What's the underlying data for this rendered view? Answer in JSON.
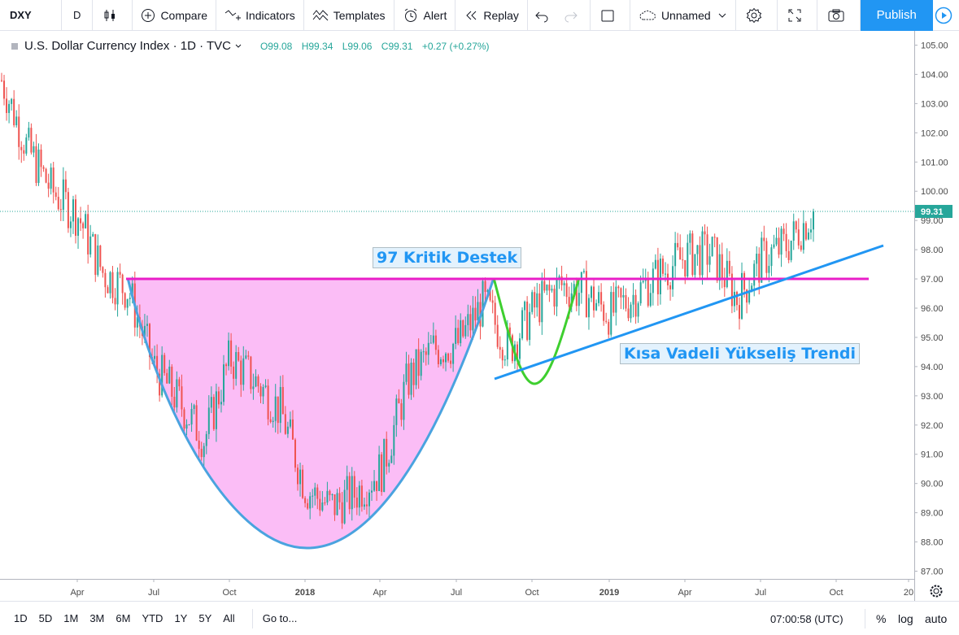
{
  "toolbar": {
    "symbol": "DXY",
    "interval": "D",
    "compare": "Compare",
    "indicators": "Indicators",
    "templates": "Templates",
    "alert": "Alert",
    "replay": "Replay",
    "layout_name": "Unnamed",
    "publish": "Publish"
  },
  "legend": {
    "title": "U.S. Dollar Currency Index · 1D · TVC",
    "open": "O99.08",
    "high": "H99.34",
    "low": "L99.06",
    "close": "C99.31",
    "change": "+0.27 (+0.27%)"
  },
  "annotations": {
    "support_label": "97 Kritik Destek",
    "trend_label": "Kısa Vadeli Yükseliş Trendi"
  },
  "bottombar": {
    "ranges": [
      "1D",
      "5D",
      "1M",
      "3M",
      "6M",
      "YTD",
      "1Y",
      "5Y",
      "All"
    ],
    "goto": "Go to...",
    "clock": "07:00:58 (UTC)",
    "percent": "%",
    "log": "log",
    "auto": "auto"
  },
  "colors": {
    "up": "#26a69a",
    "down": "#ef5350",
    "support_line": "#e91ec8",
    "cup_fill": "#fbb9f5",
    "cup_stroke": "#4aa3df",
    "handle_stroke": "#3ecf2f",
    "trend_line": "#2196f3",
    "accent": "#2196f3"
  },
  "chart_data": {
    "type": "candlestick",
    "symbol": "DXY",
    "y_axis": {
      "min": 87.0,
      "max": 105.0,
      "ticks": [
        "105.00",
        "104.00",
        "103.00",
        "102.00",
        "101.00",
        "100.00",
        "99.00",
        "98.00",
        "97.00",
        "96.00",
        "95.00",
        "94.00",
        "93.00",
        "92.00",
        "91.00",
        "90.00",
        "89.00",
        "88.00",
        "87.00"
      ]
    },
    "x_axis": {
      "ticks": [
        "Apr",
        "Jul",
        "Oct",
        "2018",
        "Apr",
        "Jul",
        "Oct",
        "2019",
        "Apr",
        "Jul",
        "Oct",
        "20"
      ]
    },
    "last_price": 99.31,
    "last_price_label": "99.31",
    "price_path": [
      [
        "2017-01",
        103.8
      ],
      [
        "2017-02",
        101.5
      ],
      [
        "2017-03",
        100.0
      ],
      [
        "2017-04",
        99.2
      ],
      [
        "2017-05",
        97.2
      ],
      [
        "2017-06",
        96.6
      ],
      [
        "2017-07",
        94.0
      ],
      [
        "2017-08",
        92.8
      ],
      [
        "2017-09",
        91.5
      ],
      [
        "2017-10",
        94.3
      ],
      [
        "2017-11",
        93.5
      ],
      [
        "2017-12",
        92.5
      ],
      [
        "2018-01",
        89.8
      ],
      [
        "2018-02",
        89.2
      ],
      [
        "2018-03",
        89.7
      ],
      [
        "2018-04",
        90.5
      ],
      [
        "2018-05",
        93.5
      ],
      [
        "2018-06",
        94.6
      ],
      [
        "2018-07",
        94.8
      ],
      [
        "2018-08",
        96.2
      ],
      [
        "2018-09",
        94.6
      ],
      [
        "2018-10",
        96.0
      ],
      [
        "2018-11",
        96.8
      ],
      [
        "2018-12",
        96.5
      ],
      [
        "2019-01",
        95.8
      ],
      [
        "2019-02",
        96.5
      ],
      [
        "2019-03",
        97.2
      ],
      [
        "2019-04",
        97.8
      ],
      [
        "2019-05",
        97.9
      ],
      [
        "2019-06",
        96.3
      ],
      [
        "2019-07",
        97.7
      ],
      [
        "2019-08",
        98.2
      ],
      [
        "2019-09",
        99.3
      ]
    ],
    "support_level": 97.0
  }
}
